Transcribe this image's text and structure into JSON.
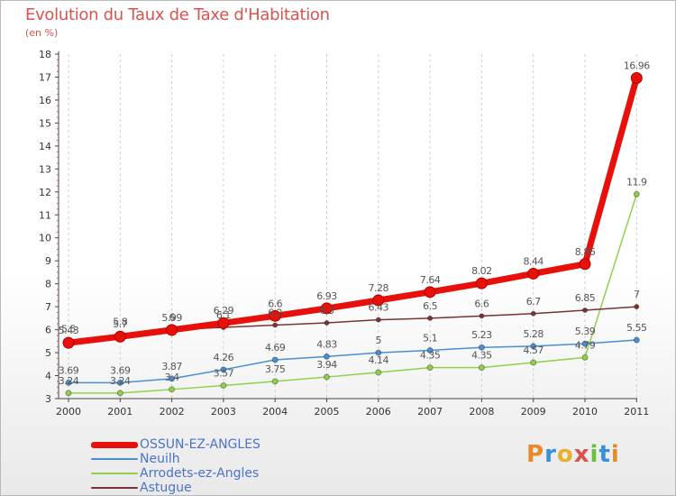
{
  "header": {
    "title": "Evolution du Taux de Taxe d'Habitation",
    "unit": "(en %)"
  },
  "brand": {
    "text": "Proxiti",
    "letter_colors": [
      "#e88a2c",
      "#3a8fd8",
      "#e8b02c",
      "#d9534f",
      "#6cbf3a",
      "#3a8fd8",
      "#e88a2c"
    ]
  },
  "chart_data": {
    "type": "line",
    "title": "Evolution du Taux de Taxe d'Habitation",
    "ylabel": "(en %)",
    "xlabel": "",
    "x": [
      "2000",
      "2001",
      "2002",
      "2003",
      "2004",
      "2005",
      "2006",
      "2007",
      "2008",
      "2009",
      "2010",
      "2011"
    ],
    "ylim": [
      3,
      18
    ],
    "yticks": [
      3,
      4,
      5,
      6,
      7,
      8,
      9,
      10,
      11,
      12,
      13,
      14,
      15,
      16,
      17,
      18
    ],
    "grid": "vertical dashed",
    "legend": "bottom-left",
    "series": [
      {
        "name": "OSSUN-EZ-ANGLES",
        "color": "#e8100a",
        "values": [
          5.43,
          5.7,
          5.99,
          6.29,
          6.6,
          6.93,
          7.28,
          7.64,
          8.02,
          8.44,
          8.86,
          16.96
        ],
        "labels": [
          "5.43",
          "5.7",
          "5.99",
          "6.29",
          "6.6",
          "6.93",
          "7.28",
          "7.64",
          "8.02",
          "8.44",
          "8.86",
          "16.96"
        ]
      },
      {
        "name": "Neuilh",
        "color": "#4b8fd1",
        "values": [
          3.69,
          3.69,
          3.87,
          4.26,
          4.69,
          4.83,
          5,
          5.1,
          5.23,
          5.28,
          5.39,
          5.55
        ],
        "labels": [
          "3.69",
          "3.69",
          "3.87",
          "4.26",
          "4.69",
          "4.83",
          "5",
          "5.1",
          "5.23",
          "5.28",
          "5.39",
          "5.55"
        ]
      },
      {
        "name": "Arrodets-ez-Angles",
        "color": "#8fd14a",
        "values": [
          3.24,
          3.24,
          3.4,
          3.57,
          3.75,
          3.94,
          4.14,
          4.35,
          4.35,
          4.57,
          4.79,
          11.9
        ],
        "labels": [
          "3.24",
          "3.24",
          "3.4",
          "3.57",
          "3.75",
          "3.94",
          "4.14",
          "4.35",
          "4.35",
          "4.57",
          "4.79",
          "11.9"
        ]
      },
      {
        "name": "Astugue",
        "color": "#7a3232",
        "values": [
          5.5,
          5.8,
          6,
          6.1,
          6.2,
          6.3,
          6.43,
          6.5,
          6.6,
          6.7,
          6.85,
          7
        ],
        "labels": [
          "5.5",
          "5.8",
          "6",
          "6.1",
          "6.2",
          "6.3",
          "6.43",
          "6.5",
          "6.6",
          "6.7",
          "6.85",
          "7"
        ]
      }
    ]
  }
}
